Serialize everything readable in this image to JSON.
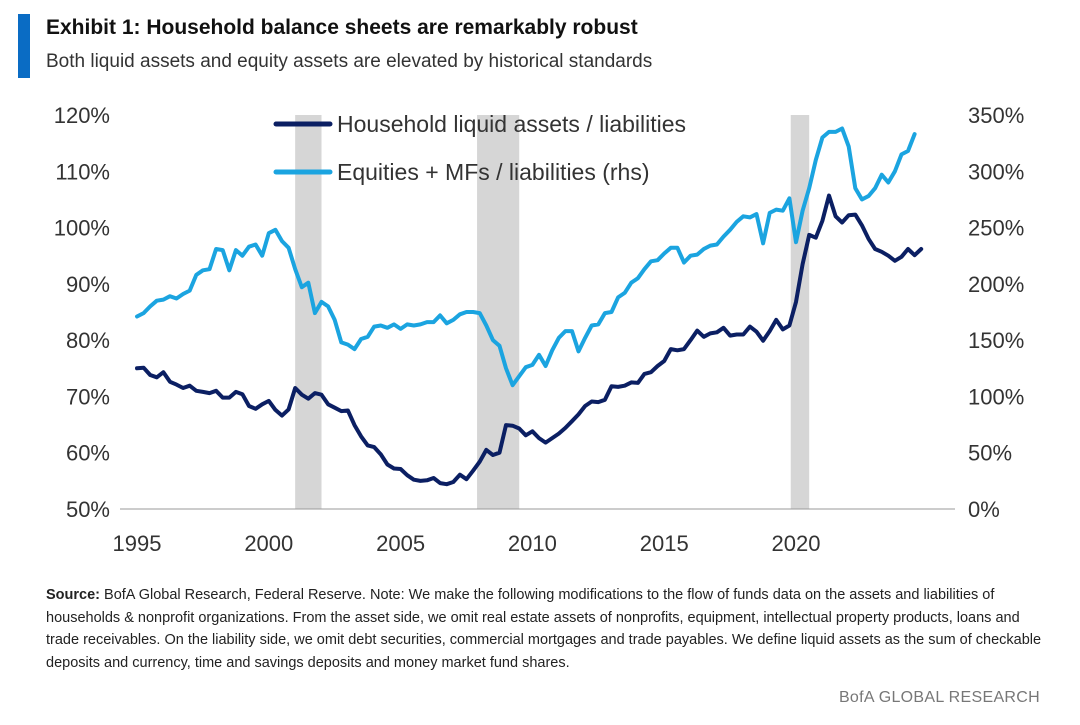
{
  "header": {
    "title": "Exhibit 1: Household balance sheets are remarkably robust",
    "subtitle": "Both liquid assets and equity assets are elevated by historical standards"
  },
  "chart_data": {
    "type": "line",
    "x_ticks": [
      "1995",
      "2000",
      "2005",
      "2010",
      "2015",
      "2020"
    ],
    "xlim": [
      1995,
      2025.5
    ],
    "y_left": {
      "ticks": [
        "50%",
        "60%",
        "70%",
        "80%",
        "90%",
        "100%",
        "110%",
        "120%"
      ],
      "ylim": [
        50,
        120
      ]
    },
    "y_right": {
      "ticks": [
        "0%",
        "50%",
        "100%",
        "150%",
        "200%",
        "250%",
        "300%",
        "350%"
      ],
      "ylim": [
        0,
        350
      ]
    },
    "recessions": [
      [
        2001.0,
        2002.0
      ],
      [
        2007.9,
        2009.5
      ],
      [
        2019.8,
        2020.5
      ]
    ],
    "legend_position": "top-center",
    "grid": false,
    "series": [
      {
        "name": "Household liquid assets / liabilities",
        "axis": "left",
        "color": "#0b1f63",
        "points": [
          [
            1995.0,
            75.0
          ],
          [
            1995.25,
            75.1
          ],
          [
            1995.5,
            73.8
          ],
          [
            1995.75,
            73.4
          ],
          [
            1996.0,
            74.3
          ],
          [
            1996.25,
            72.6
          ],
          [
            1996.5,
            72.1
          ],
          [
            1996.75,
            71.5
          ],
          [
            1997.0,
            71.9
          ],
          [
            1997.25,
            71.0
          ],
          [
            1997.5,
            70.8
          ],
          [
            1997.75,
            70.6
          ],
          [
            1998.0,
            71.0
          ],
          [
            1998.25,
            69.8
          ],
          [
            1998.5,
            69.8
          ],
          [
            1998.75,
            70.8
          ],
          [
            1999.0,
            70.4
          ],
          [
            1999.25,
            68.3
          ],
          [
            1999.5,
            67.8
          ],
          [
            1999.75,
            68.6
          ],
          [
            2000.0,
            69.2
          ],
          [
            2000.25,
            67.6
          ],
          [
            2000.5,
            66.6
          ],
          [
            2000.75,
            67.7
          ],
          [
            2001.0,
            71.5
          ],
          [
            2001.25,
            70.3
          ],
          [
            2001.5,
            69.6
          ],
          [
            2001.75,
            70.6
          ],
          [
            2002.0,
            70.3
          ],
          [
            2002.25,
            68.6
          ],
          [
            2002.5,
            68.0
          ],
          [
            2002.75,
            67.4
          ],
          [
            2003.0,
            67.5
          ],
          [
            2003.25,
            64.9
          ],
          [
            2003.5,
            62.9
          ],
          [
            2003.75,
            61.3
          ],
          [
            2004.0,
            61.0
          ],
          [
            2004.25,
            59.7
          ],
          [
            2004.5,
            57.9
          ],
          [
            2004.75,
            57.2
          ],
          [
            2005.0,
            57.1
          ],
          [
            2005.25,
            56.0
          ],
          [
            2005.5,
            55.2
          ],
          [
            2005.75,
            55.0
          ],
          [
            2006.0,
            55.1
          ],
          [
            2006.25,
            55.5
          ],
          [
            2006.5,
            54.6
          ],
          [
            2006.75,
            54.4
          ],
          [
            2007.0,
            54.8
          ],
          [
            2007.25,
            56.1
          ],
          [
            2007.5,
            55.3
          ],
          [
            2007.75,
            56.8
          ],
          [
            2008.0,
            58.4
          ],
          [
            2008.25,
            60.5
          ],
          [
            2008.5,
            59.6
          ],
          [
            2008.75,
            60.0
          ],
          [
            2009.0,
            64.9
          ],
          [
            2009.25,
            64.8
          ],
          [
            2009.5,
            64.3
          ],
          [
            2009.75,
            63.1
          ],
          [
            2010.0,
            63.8
          ],
          [
            2010.25,
            62.6
          ],
          [
            2010.5,
            61.8
          ],
          [
            2010.75,
            62.6
          ],
          [
            2011.0,
            63.4
          ],
          [
            2011.25,
            64.4
          ],
          [
            2011.5,
            65.6
          ],
          [
            2011.75,
            66.8
          ],
          [
            2012.0,
            68.3
          ],
          [
            2012.25,
            69.1
          ],
          [
            2012.5,
            69.0
          ],
          [
            2012.75,
            69.4
          ],
          [
            2013.0,
            71.8
          ],
          [
            2013.25,
            71.7
          ],
          [
            2013.5,
            71.9
          ],
          [
            2013.75,
            72.5
          ],
          [
            2014.0,
            72.4
          ],
          [
            2014.25,
            74.0
          ],
          [
            2014.5,
            74.3
          ],
          [
            2014.75,
            75.4
          ],
          [
            2015.0,
            76.3
          ],
          [
            2015.25,
            78.4
          ],
          [
            2015.5,
            78.2
          ],
          [
            2015.75,
            78.4
          ],
          [
            2016.0,
            80.0
          ],
          [
            2016.25,
            81.7
          ],
          [
            2016.5,
            80.6
          ],
          [
            2016.75,
            81.2
          ],
          [
            2017.0,
            81.4
          ],
          [
            2017.25,
            82.2
          ],
          [
            2017.5,
            80.8
          ],
          [
            2017.75,
            81.0
          ],
          [
            2018.0,
            81.0
          ],
          [
            2018.25,
            82.4
          ],
          [
            2018.5,
            81.5
          ],
          [
            2018.75,
            79.9
          ],
          [
            2019.0,
            81.6
          ],
          [
            2019.25,
            83.6
          ],
          [
            2019.5,
            81.9
          ],
          [
            2019.75,
            82.6
          ],
          [
            2020.0,
            86.8
          ],
          [
            2020.25,
            93.5
          ],
          [
            2020.5,
            98.7
          ],
          [
            2020.75,
            98.2
          ],
          [
            2021.0,
            101.2
          ],
          [
            2021.25,
            105.7
          ],
          [
            2021.5,
            102.0
          ],
          [
            2021.75,
            100.9
          ],
          [
            2022.0,
            102.2
          ],
          [
            2022.25,
            102.3
          ],
          [
            2022.5,
            100.4
          ],
          [
            2022.75,
            98.0
          ],
          [
            2023.0,
            96.2
          ],
          [
            2023.25,
            95.7
          ],
          [
            2023.5,
            95.0
          ],
          [
            2023.75,
            94.1
          ],
          [
            2024.0,
            94.8
          ],
          [
            2024.25,
            96.2
          ],
          [
            2024.5,
            95.1
          ],
          [
            2024.75,
            96.2
          ]
        ]
      },
      {
        "name": "Equities + MFs / liabilities (rhs)",
        "axis": "right",
        "color": "#1ba4e0",
        "points": [
          [
            1995.0,
            171
          ],
          [
            1995.25,
            174
          ],
          [
            1995.5,
            180
          ],
          [
            1995.75,
            185
          ],
          [
            1996.0,
            186
          ],
          [
            1996.25,
            189
          ],
          [
            1996.5,
            187
          ],
          [
            1996.75,
            191
          ],
          [
            1997.0,
            194
          ],
          [
            1997.25,
            208
          ],
          [
            1997.5,
            212
          ],
          [
            1997.75,
            213
          ],
          [
            1998.0,
            231
          ],
          [
            1998.25,
            230
          ],
          [
            1998.5,
            212
          ],
          [
            1998.75,
            230
          ],
          [
            1999.0,
            225
          ],
          [
            1999.25,
            233
          ],
          [
            1999.5,
            235
          ],
          [
            1999.75,
            225
          ],
          [
            2000.0,
            245
          ],
          [
            2000.25,
            248
          ],
          [
            2000.5,
            238
          ],
          [
            2000.75,
            232
          ],
          [
            2001.0,
            213
          ],
          [
            2001.25,
            197
          ],
          [
            2001.5,
            201
          ],
          [
            2001.75,
            174
          ],
          [
            2002.0,
            184
          ],
          [
            2002.25,
            180
          ],
          [
            2002.5,
            168
          ],
          [
            2002.75,
            148
          ],
          [
            2003.0,
            146
          ],
          [
            2003.25,
            142
          ],
          [
            2003.5,
            151
          ],
          [
            2003.75,
            153
          ],
          [
            2004.0,
            162
          ],
          [
            2004.25,
            163
          ],
          [
            2004.5,
            161
          ],
          [
            2004.75,
            164
          ],
          [
            2005.0,
            160
          ],
          [
            2005.25,
            164
          ],
          [
            2005.5,
            163
          ],
          [
            2005.75,
            164
          ],
          [
            2006.0,
            166
          ],
          [
            2006.25,
            166
          ],
          [
            2006.5,
            172
          ],
          [
            2006.75,
            165
          ],
          [
            2007.0,
            168
          ],
          [
            2007.25,
            173
          ],
          [
            2007.5,
            175
          ],
          [
            2007.75,
            175
          ],
          [
            2008.0,
            174
          ],
          [
            2008.25,
            163
          ],
          [
            2008.5,
            150
          ],
          [
            2008.75,
            145
          ],
          [
            2009.0,
            125
          ],
          [
            2009.25,
            110
          ],
          [
            2009.5,
            118
          ],
          [
            2009.75,
            126
          ],
          [
            2010.0,
            128
          ],
          [
            2010.25,
            137
          ],
          [
            2010.5,
            127
          ],
          [
            2010.75,
            141
          ],
          [
            2011.0,
            152
          ],
          [
            2011.25,
            158
          ],
          [
            2011.5,
            158
          ],
          [
            2011.75,
            140
          ],
          [
            2012.0,
            152
          ],
          [
            2012.25,
            163
          ],
          [
            2012.5,
            164
          ],
          [
            2012.75,
            174
          ],
          [
            2013.0,
            175
          ],
          [
            2013.25,
            188
          ],
          [
            2013.5,
            192
          ],
          [
            2013.75,
            201
          ],
          [
            2014.0,
            205
          ],
          [
            2014.25,
            213
          ],
          [
            2014.5,
            220
          ],
          [
            2014.75,
            221
          ],
          [
            2015.0,
            227
          ],
          [
            2015.25,
            232
          ],
          [
            2015.5,
            232
          ],
          [
            2015.75,
            219
          ],
          [
            2016.0,
            225
          ],
          [
            2016.25,
            226
          ],
          [
            2016.5,
            231
          ],
          [
            2016.75,
            234
          ],
          [
            2017.0,
            235
          ],
          [
            2017.25,
            242
          ],
          [
            2017.5,
            248
          ],
          [
            2017.75,
            255
          ],
          [
            2018.0,
            260
          ],
          [
            2018.25,
            259
          ],
          [
            2018.5,
            262
          ],
          [
            2018.75,
            236
          ],
          [
            2019.0,
            263
          ],
          [
            2019.25,
            266
          ],
          [
            2019.5,
            265
          ],
          [
            2019.75,
            276
          ],
          [
            2020.0,
            237
          ],
          [
            2020.25,
            265
          ],
          [
            2020.5,
            285
          ],
          [
            2020.75,
            310
          ],
          [
            2021.0,
            330
          ],
          [
            2021.25,
            335
          ],
          [
            2021.5,
            335
          ],
          [
            2021.75,
            338
          ],
          [
            2022.0,
            322
          ],
          [
            2022.25,
            285
          ],
          [
            2022.5,
            275
          ],
          [
            2022.75,
            278
          ],
          [
            2023.0,
            285
          ],
          [
            2023.25,
            297
          ],
          [
            2023.5,
            290
          ],
          [
            2023.75,
            300
          ],
          [
            2024.0,
            315
          ],
          [
            2024.25,
            318
          ],
          [
            2024.5,
            333
          ]
        ]
      }
    ]
  },
  "footnote": {
    "source_label": "Source:",
    "text": " BofA Global Research, Federal Reserve. Note: We make the following modifications to the flow of funds data on the assets and liabilities of households & nonprofit organizations. From the asset side, we omit real estate assets of nonprofits, equipment, intellectual property products, loans and trade receivables. On the liability side, we omit debt securities, commercial mortgages and trade payables. We define liquid assets as the sum of checkable deposits and currency, time and savings deposits and money market fund shares."
  },
  "brand": "BofA GLOBAL RESEARCH"
}
